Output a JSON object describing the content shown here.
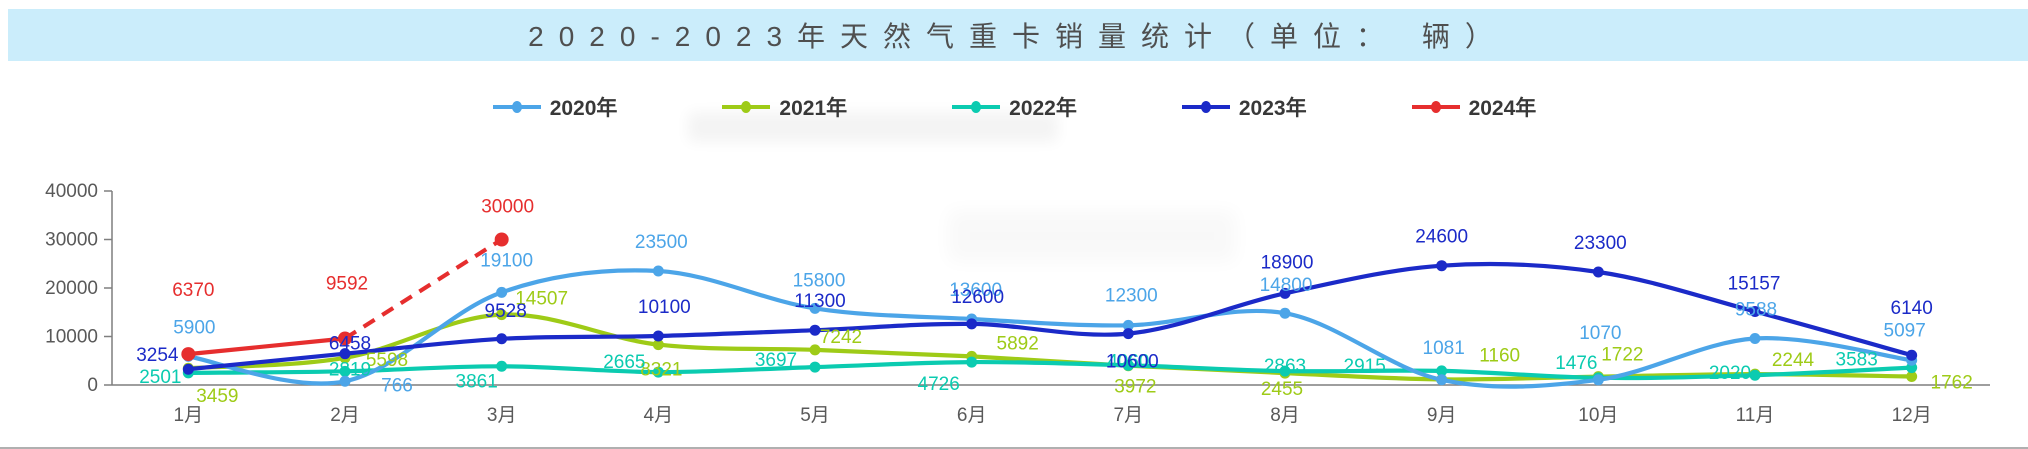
{
  "title": "2020-2023年天然气重卡销量统计（单位： 辆）",
  "colors": {
    "titlebar_bg": "#cbedfb",
    "title_text": "#4f4f4f",
    "axis_line": "#7f7f7f",
    "axis_text": "#595959",
    "legend_text": "#383838"
  },
  "chart_data": {
    "type": "line",
    "title": "2020-2023年天然气重卡销量统计（单位： 辆）",
    "categories": [
      "1月",
      "2月",
      "3月",
      "4月",
      "5月",
      "6月",
      "7月",
      "8月",
      "9月",
      "10月",
      "11月",
      "12月"
    ],
    "yticks": [
      0,
      10000,
      20000,
      30000,
      40000
    ],
    "ylim": [
      0,
      40000
    ],
    "grid": false,
    "legend_position": "top",
    "series": [
      {
        "name": "2020年",
        "color": "#4ca5e8",
        "dashed": false,
        "values": [
          5900,
          766,
          19100,
          23500,
          15800,
          13600,
          12300,
          14800,
          1081,
          1070,
          9588,
          5097
        ],
        "label_offsets": [
          [
            6,
            -29
          ],
          [
            52,
            4
          ],
          [
            5,
            -32
          ],
          [
            3,
            -29
          ],
          [
            4,
            -28
          ],
          [
            4,
            -29
          ],
          [
            3,
            -30
          ],
          [
            1,
            -28
          ],
          [
            2,
            -32
          ],
          [
            2,
            -47
          ],
          [
            1,
            -29
          ],
          [
            -7,
            -30
          ]
        ]
      },
      {
        "name": "2021年",
        "color": "#9ecb17",
        "dashed": false,
        "values": [
          3459,
          5598,
          14507,
          8321,
          7242,
          5892,
          3972,
          2455,
          1160,
          1722,
          2244,
          1762
        ],
        "label_offsets": [
          [
            29,
            28
          ],
          [
            42,
            2
          ],
          [
            40,
            -16
          ],
          [
            3,
            25
          ],
          [
            26,
            -13
          ],
          [
            46,
            -13
          ],
          [
            7,
            21
          ],
          [
            -3,
            16
          ],
          [
            58,
            -24
          ],
          [
            24,
            -22
          ],
          [
            38,
            -14
          ],
          [
            40,
            6
          ]
        ]
      },
      {
        "name": "2022年",
        "color": "#0bcbb0",
        "dashed": false,
        "values": [
          2501,
          2819,
          3861,
          2665,
          3697,
          4726,
          4060,
          2863,
          2915,
          1476,
          2020,
          3583
        ],
        "label_offsets": [
          [
            -28,
            4
          ],
          [
            5,
            -2
          ],
          [
            -25,
            15
          ],
          [
            -34,
            -10
          ],
          [
            -39,
            -7
          ],
          [
            -33,
            22
          ],
          [
            0,
            -4
          ],
          [
            0,
            -5
          ],
          [
            -77,
            -5
          ],
          [
            -22,
            -15
          ],
          [
            -25,
            -2
          ],
          [
            -55,
            -8
          ]
        ]
      },
      {
        "name": "2023年",
        "color": "#1b2ac8",
        "dashed": false,
        "values": [
          3254,
          6458,
          9528,
          10100,
          11300,
          12600,
          10600,
          18900,
          24600,
          23300,
          15157,
          6140
        ],
        "label_offsets": [
          [
            -31,
            -14
          ],
          [
            5,
            -10
          ],
          [
            4,
            -28
          ],
          [
            6,
            -29
          ],
          [
            5,
            -29
          ],
          [
            6,
            -27
          ],
          [
            4,
            28
          ],
          [
            2,
            -31
          ],
          [
            0,
            -29
          ],
          [
            2,
            -29
          ],
          [
            -1,
            -28
          ],
          [
            0,
            -47
          ]
        ]
      },
      {
        "name": "2024年",
        "color": "#e62e2e",
        "dashed": true,
        "dashed_from": 1,
        "values": [
          6370,
          9592,
          30000,
          null,
          null,
          null,
          null,
          null,
          null,
          null,
          null,
          null
        ],
        "label_offsets": [
          [
            5,
            -64
          ],
          [
            2,
            -55
          ],
          [
            6,
            -33
          ]
        ]
      }
    ]
  }
}
